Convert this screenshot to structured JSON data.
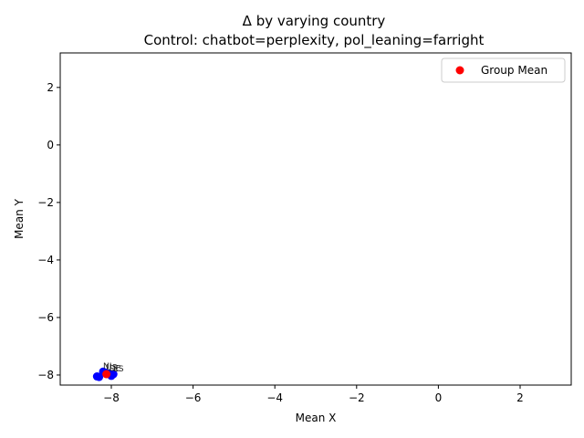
{
  "chart_data": {
    "type": "scatter",
    "title": "Δ by varying country",
    "subtitle": "Control: chatbot=perplexity, pol_leaning=farright",
    "xlabel": "Mean X",
    "ylabel": "Mean Y",
    "xlim": [
      -9.25,
      3.25
    ],
    "ylim": [
      -8.35,
      3.2
    ],
    "xticks": [
      -8,
      -6,
      -4,
      -2,
      0,
      2
    ],
    "yticks": [
      -8,
      -6,
      -4,
      -2,
      0,
      2
    ],
    "xtick_labels": [
      "−8",
      "−6",
      "−4",
      "−2",
      "0",
      "2"
    ],
    "ytick_labels": [
      "−8",
      "−6",
      "−4",
      "−2",
      "0",
      "2"
    ],
    "grid": false,
    "legend": {
      "position": "top-right",
      "entries": [
        {
          "label": "Group Mean",
          "color": "#ff0000",
          "marker": "circle"
        }
      ]
    },
    "series": [
      {
        "color": "#0000ff",
        "points": [
          {
            "x": -8.2,
            "y": -7.88,
            "label": "NL"
          },
          {
            "x": -8.13,
            "y": -7.92,
            "label": "US"
          },
          {
            "x": -8.05,
            "y": -7.95,
            "label": "DE"
          },
          {
            "x": -7.95,
            "y": -7.97,
            "label": "ES"
          },
          {
            "x": -8.0,
            "y": -8.03,
            "label": ""
          },
          {
            "x": -8.35,
            "y": -8.05,
            "label": ""
          },
          {
            "x": -8.3,
            "y": -8.07,
            "label": ""
          }
        ]
      },
      {
        "name": "Group Mean",
        "color": "#ff0000",
        "points": [
          {
            "x": -8.12,
            "y": -7.97,
            "label": ""
          }
        ]
      }
    ]
  }
}
